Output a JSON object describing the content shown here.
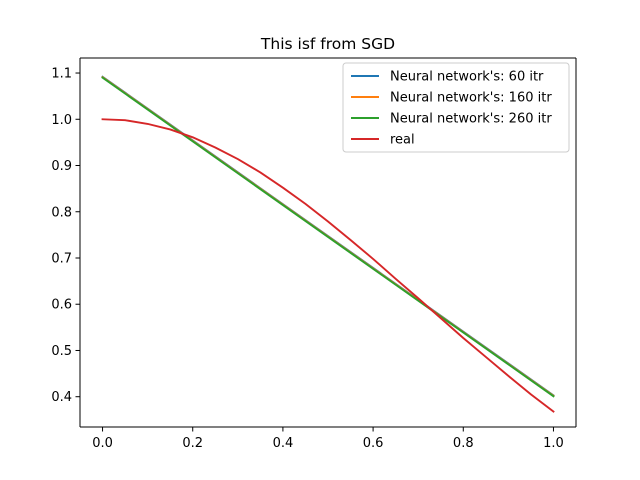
{
  "chart_data": {
    "type": "line",
    "title": "This isf from SGD",
    "xlabel": "",
    "ylabel": "",
    "xlim": [
      -0.05,
      1.05
    ],
    "ylim": [
      0.3345,
      1.1325
    ],
    "xticks": [
      0.0,
      0.2,
      0.4,
      0.6,
      0.8,
      1.0
    ],
    "xtick_labels": [
      "0.0",
      "0.2",
      "0.4",
      "0.6",
      "0.8",
      "1.0"
    ],
    "yticks": [
      0.4,
      0.5,
      0.6,
      0.7,
      0.8,
      0.9,
      1.0,
      1.1
    ],
    "ytick_labels": [
      "0.4",
      "0.5",
      "0.6",
      "0.7",
      "0.8",
      "0.9",
      "1.0",
      "1.1"
    ],
    "grid": false,
    "legend_position": "top-right",
    "series": [
      {
        "name": "Neural network's: 60 itr",
        "color": "#1f77b4",
        "x": [
          0.0,
          1.0
        ],
        "y": [
          1.092,
          0.403
        ]
      },
      {
        "name": "Neural network's: 160 itr",
        "color": "#ff7f0e",
        "x": [
          0.0,
          1.0
        ],
        "y": [
          1.091,
          0.402
        ]
      },
      {
        "name": "Neural network's: 260 itr",
        "color": "#2ca02c",
        "x": [
          0.0,
          1.0
        ],
        "y": [
          1.09,
          0.401
        ]
      },
      {
        "name": "real",
        "color": "#d62728",
        "x": [
          0.0,
          0.05,
          0.1,
          0.15,
          0.2,
          0.25,
          0.3,
          0.35,
          0.4,
          0.45,
          0.5,
          0.55,
          0.6,
          0.65,
          0.7,
          0.75,
          0.8,
          0.85,
          0.9,
          0.95,
          1.0
        ],
        "y": [
          1.0,
          0.998,
          0.99,
          0.978,
          0.961,
          0.939,
          0.914,
          0.885,
          0.852,
          0.817,
          0.779,
          0.739,
          0.698,
          0.655,
          0.613,
          0.57,
          0.527,
          0.486,
          0.445,
          0.405,
          0.368
        ]
      }
    ]
  }
}
